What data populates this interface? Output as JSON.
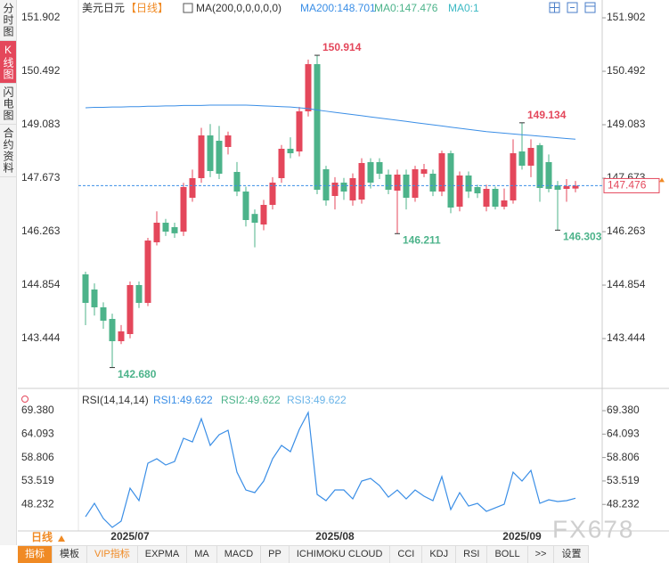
{
  "sidebar": {
    "tabs": [
      "分时图",
      "K线图",
      "闪电图",
      "合约资料"
    ]
  },
  "toolbar": {
    "period": "日线",
    "tabs": [
      "指标",
      "模板",
      "VIP指标",
      "EXPMA",
      "MA",
      "MACD",
      "PP",
      "ICHIMOKU CLOUD",
      "CCI",
      "KDJ",
      "RSI",
      "BOLL",
      ">>",
      "设置"
    ]
  },
  "watermark": "FX678",
  "chart_data": [
    {
      "type": "candlestick",
      "title": "美元日元",
      "period": "【日线】",
      "indicator": "MA(200,0,0,0,0,0)",
      "up_color": "#e4475b",
      "down_color": "#4cb38a",
      "open": [
        145.137,
        144.738,
        144.268,
        143.962,
        143.375,
        143.563,
        144.855,
        144.385,
        145.983,
        146.499,
        146.382,
        146.264,
        147.157,
        147.674,
        148.801,
        148.66,
        148.496,
        147.838,
        147.321,
        146.73,
        146.452,
        146.969,
        147.674,
        148.449,
        148.378,
        149.436,
        150.681,
        147.909,
        147.204,
        147.556,
        147.087,
        147.11,
        148.097,
        148.097,
        147.768,
        147.345,
        147.768,
        147.157,
        147.791,
        147.791,
        147.321,
        148.331,
        146.922,
        147.744,
        147.439,
        146.922,
        147.392,
        146.922,
        147.087,
        148.378,
        148.003,
        148.543,
        148.097,
        147.486,
        147.392,
        147.4
      ],
      "high": [
        145.207,
        144.9,
        144.4,
        144.1,
        143.8,
        144.95,
        144.95,
        146.1,
        146.8,
        146.6,
        146.5,
        147.55,
        147.9,
        149.0,
        149.1,
        149.05,
        148.9,
        148.1,
        147.45,
        146.85,
        147.1,
        147.7,
        148.55,
        148.75,
        149.55,
        150.8,
        150.914,
        148.0,
        147.7,
        147.68,
        147.8,
        148.2,
        148.2,
        148.2,
        147.9,
        147.9,
        147.9,
        148.0,
        148.05,
        147.9,
        148.4,
        148.4,
        147.85,
        147.85,
        147.5,
        147.5,
        147.45,
        147.4,
        148.7,
        149.134,
        148.7,
        148.6,
        148.3,
        147.6,
        147.65,
        147.6
      ],
      "low": [
        143.798,
        144.05,
        143.7,
        142.68,
        143.3,
        143.45,
        144.25,
        144.3,
        145.9,
        146.15,
        146.1,
        146.15,
        147.05,
        147.55,
        147.7,
        147.65,
        148.3,
        147.2,
        146.4,
        145.85,
        146.3,
        146.85,
        147.55,
        148.2,
        148.25,
        149.3,
        147.25,
        146.95,
        146.85,
        147.1,
        146.95,
        147.0,
        147.4,
        147.65,
        147.25,
        146.211,
        146.85,
        147.05,
        147.7,
        147.2,
        147.2,
        146.75,
        146.8,
        147.15,
        147.15,
        146.8,
        146.85,
        146.85,
        147.0,
        147.9,
        147.7,
        147.05,
        147.3,
        146.303,
        147.05,
        147.3
      ],
      "close": [
        144.385,
        144.268,
        143.915,
        143.375,
        143.633,
        144.855,
        144.385,
        146.029,
        146.499,
        146.264,
        146.22,
        147.439,
        147.674,
        148.801,
        147.862,
        147.791,
        148.801,
        147.321,
        146.57,
        146.499,
        146.969,
        147.556,
        148.449,
        148.331,
        149.436,
        150.681,
        147.368,
        147.087,
        147.556,
        147.321,
        147.674,
        148.073,
        147.556,
        147.791,
        147.368,
        147.768,
        147.157,
        147.909,
        147.909,
        147.321,
        148.331,
        146.899,
        147.744,
        147.321,
        147.274,
        147.392,
        146.922,
        147.087,
        148.331,
        148.003,
        148.472,
        147.415,
        147.392,
        147.368,
        147.462,
        147.476
      ],
      "high_labels": {
        "26": "150.914",
        "49": "149.134"
      },
      "low_labels": {
        "3": "142.680",
        "35": "146.211",
        "53": "146.303"
      },
      "series": [
        {
          "name": "MA200:148.701",
          "color": "#3a8ee6",
          "values": [
            149.53,
            149.54,
            149.54,
            149.55,
            149.55,
            149.56,
            149.56,
            149.57,
            149.57,
            149.58,
            149.58,
            149.59,
            149.59,
            149.59,
            149.6,
            149.6,
            149.6,
            149.6,
            149.6,
            149.59,
            149.58,
            149.57,
            149.56,
            149.55,
            149.53,
            149.51,
            149.47,
            149.44,
            149.41,
            149.38,
            149.35,
            149.32,
            149.29,
            149.26,
            149.23,
            149.2,
            149.17,
            149.14,
            149.11,
            149.08,
            149.05,
            149.02,
            148.99,
            148.96,
            148.93,
            148.9,
            148.88,
            148.86,
            148.84,
            148.82,
            148.8,
            148.78,
            148.76,
            148.74,
            148.72,
            148.701
          ]
        }
      ],
      "extra_legend": [
        {
          "name": "MA0:147.476",
          "color": "#4cb38a"
        },
        {
          "name": "MA0:1",
          "color": "#3cb9c4"
        }
      ],
      "ylim": [
        142.271,
        152.184
      ],
      "yticks": [
        151.902,
        150.492,
        149.083,
        147.673,
        146.263,
        144.854,
        143.444
      ]
    },
    {
      "type": "line",
      "title": "RSI(14,14,14)",
      "categories": [
        null,
        null,
        null,
        null,
        null,
        "2025/07",
        null,
        null,
        null,
        null,
        null,
        null,
        null,
        null,
        null,
        null,
        null,
        null,
        null,
        null,
        null,
        null,
        null,
        null,
        null,
        null,
        null,
        null,
        "2025/08",
        null,
        null,
        null,
        null,
        null,
        null,
        null,
        null,
        null,
        null,
        null,
        null,
        null,
        null,
        null,
        null,
        null,
        null,
        null,
        null,
        "2025/09",
        null,
        null,
        null,
        null,
        null,
        null
      ],
      "series": [
        {
          "name": "RSI1:49.622",
          "color": "#3a8ee6",
          "values": [
            45.46,
            48.48,
            45.06,
            43.05,
            44.46,
            51.89,
            49.08,
            57.52,
            58.53,
            57.12,
            57.92,
            63.15,
            62.34,
            67.57,
            61.54,
            63.95,
            64.96,
            55.51,
            51.49,
            50.89,
            53.5,
            58.53,
            61.54,
            60.13,
            65.16,
            68.98,
            50.49,
            49.08,
            51.49,
            51.49,
            49.48,
            53.5,
            54.1,
            52.5,
            49.88,
            51.49,
            49.48,
            51.49,
            50.08,
            49.08,
            54.51,
            47.07,
            50.89,
            47.87,
            48.48,
            46.67,
            47.47,
            48.27,
            55.51,
            53.5,
            55.91,
            48.48,
            49.28,
            48.88,
            49.08,
            49.622
          ]
        }
      ],
      "extra_legend": [
        {
          "name": "RSI2:49.622",
          "color": "#4cb38a"
        },
        {
          "name": "RSI3:49.622",
          "color": "#6ab4e8"
        }
      ],
      "ylim": [
        42.25,
        73.6
      ],
      "yticks": [
        {
          "value": 69.38,
          "label": "69.380"
        },
        64.093,
        58.806,
        53.519,
        48.232
      ]
    }
  ]
}
